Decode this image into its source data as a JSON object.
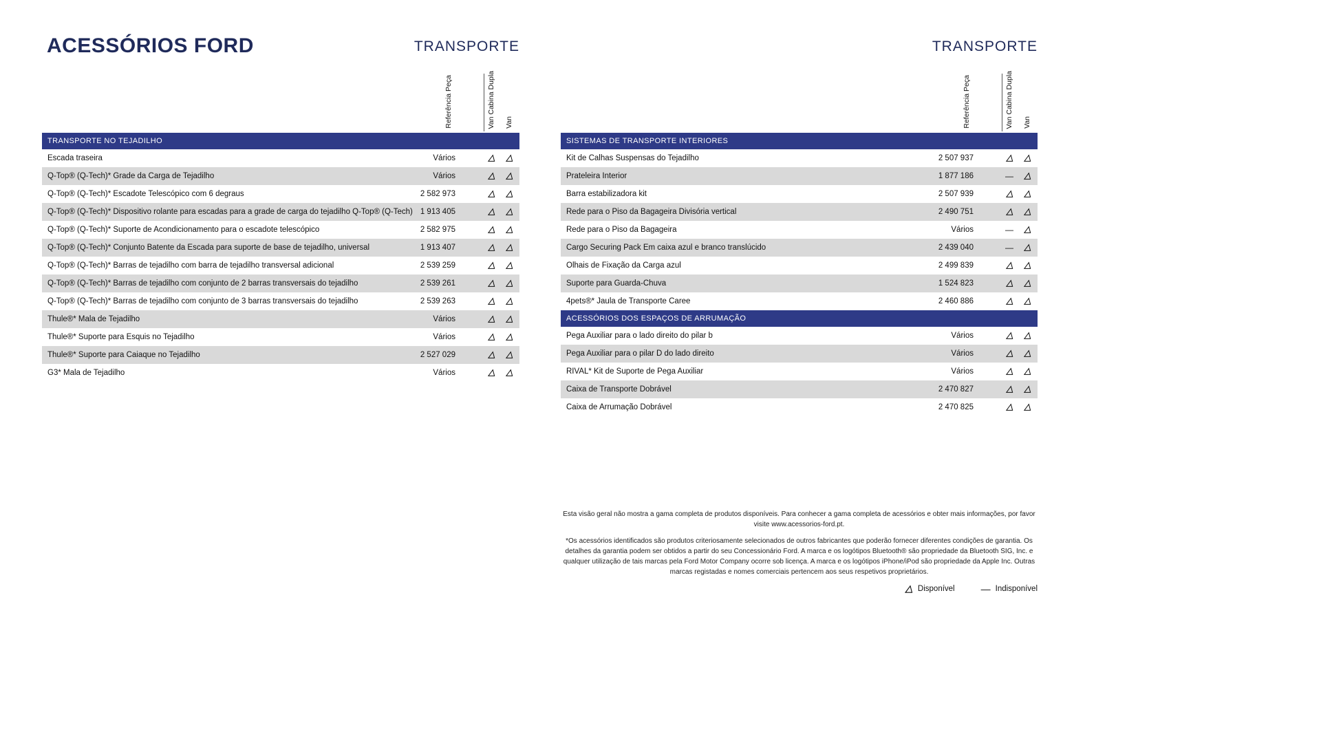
{
  "page": {
    "title": "ACESSÓRIOS FORD"
  },
  "columns": {
    "ref": "Referência Peça",
    "van_cabina_dupla": "Van Cabina Dupla",
    "van": "Van"
  },
  "symbols": {
    "dash": "—"
  },
  "legend": {
    "available": "Disponível",
    "unavailable": "Indisponível"
  },
  "colors": {
    "header_bar": "#2e3a87",
    "row_alt": "#d9d9d9",
    "title": "#1f2a5a"
  },
  "footnotes": [
    "Esta visão geral não mostra a gama completa de produtos disponíveis. Para conhecer a gama completa de acessórios e obter mais informações, por favor visite www.acessorios-ford.pt.",
    "*Os acessórios identificados são produtos criteriosamente selecionados de outros fabricantes que poderão fornecer diferentes condições de garantia. Os detalhes da garantia podem ser obtidos a partir do seu Concessionário Ford. A marca e os logótipos Bluetooth® são propriedade da Bluetooth SIG, Inc. e qualquer utilização de tais marcas pela Ford Motor Company ocorre sob licença. A marca e os logótipos iPhone/iPod são propriedade da Apple Inc. Outras marcas registadas e nomes comerciais pertencem aos seus respetivos proprietários."
  ],
  "left_table": {
    "header": "TRANSPORTE",
    "sections": [
      {
        "title": "TRANSPORTE NO TEJADILHO",
        "rows": [
          {
            "name": "Escada traseira",
            "ref": "Vários",
            "van_cabina_dupla": true,
            "van": true
          },
          {
            "name": "Q-Top® (Q-Tech)* Grade da Carga de Tejadilho",
            "ref": "Vários",
            "van_cabina_dupla": true,
            "van": true
          },
          {
            "name": "Q-Top® (Q-Tech)* Escadote Telescópico com 6 degraus",
            "ref": "2 582 973",
            "van_cabina_dupla": true,
            "van": true
          },
          {
            "name": "Q-Top® (Q-Tech)* Dispositivo rolante para escadas para a grade de carga do tejadilho Q-Top® (Q-Tech)",
            "ref": "1 913 405",
            "van_cabina_dupla": true,
            "van": true
          },
          {
            "name": "Q-Top® (Q-Tech)* Suporte de Acondicionamento para o escadote telescópico",
            "ref": "2 582 975",
            "van_cabina_dupla": true,
            "van": true
          },
          {
            "name": "Q-Top® (Q-Tech)* Conjunto Batente da Escada para suporte de base de tejadilho, universal",
            "ref": "1 913 407",
            "van_cabina_dupla": true,
            "van": true
          },
          {
            "name": "Q-Top® (Q-Tech)* Barras de tejadilho com barra de tejadilho transversal adicional",
            "ref": "2 539 259",
            "van_cabina_dupla": true,
            "van": true
          },
          {
            "name": "Q-Top® (Q-Tech)* Barras de tejadilho com conjunto de 2 barras transversais do tejadilho",
            "ref": "2 539 261",
            "van_cabina_dupla": true,
            "van": true
          },
          {
            "name": "Q-Top® (Q-Tech)* Barras de tejadilho com conjunto de 3 barras transversais do tejadilho",
            "ref": "2 539 263",
            "van_cabina_dupla": true,
            "van": true
          },
          {
            "name": "Thule®* Mala de Tejadilho",
            "ref": "Vários",
            "van_cabina_dupla": true,
            "van": true
          },
          {
            "name": "Thule®* Suporte para Esquis no Tejadilho",
            "ref": "Vários",
            "van_cabina_dupla": true,
            "van": true
          },
          {
            "name": "Thule®* Suporte para Caiaque no Tejadilho",
            "ref": "2 527 029",
            "van_cabina_dupla": true,
            "van": true
          },
          {
            "name": "G3* Mala de Tejadilho",
            "ref": "Vários",
            "van_cabina_dupla": true,
            "van": true
          }
        ]
      }
    ]
  },
  "right_table": {
    "header": "TRANSPORTE",
    "sections": [
      {
        "title": "SISTEMAS DE TRANSPORTE INTERIORES",
        "rows": [
          {
            "name": "Kit de Calhas Suspensas do Tejadilho",
            "ref": "2 507 937",
            "van_cabina_dupla": true,
            "van": true
          },
          {
            "name": "Prateleira Interior",
            "ref": "1 877 186",
            "van_cabina_dupla": false,
            "van": true
          },
          {
            "name": "Barra estabilizadora kit",
            "ref": "2 507 939",
            "van_cabina_dupla": true,
            "van": true
          },
          {
            "name": "Rede para o Piso da Bagageira Divisória vertical",
            "ref": "2 490 751",
            "van_cabina_dupla": true,
            "van": true
          },
          {
            "name": "Rede para o Piso da Bagageira",
            "ref": "Vários",
            "van_cabina_dupla": false,
            "van": true
          },
          {
            "name": "Cargo Securing Pack Em caixa azul e branco translúcido",
            "ref": "2 439 040",
            "van_cabina_dupla": false,
            "van": true
          },
          {
            "name": "Olhais de Fixação da Carga azul",
            "ref": "2 499 839",
            "van_cabina_dupla": true,
            "van": true
          },
          {
            "name": "Suporte para Guarda-Chuva",
            "ref": "1 524 823",
            "van_cabina_dupla": true,
            "van": true
          },
          {
            "name": "4pets®* Jaula de Transporte Caree",
            "ref": "2 460 886",
            "van_cabina_dupla": true,
            "van": true
          }
        ]
      },
      {
        "title": "ACESSÓRIOS DOS ESPAÇOS DE ARRUMAÇÃO",
        "rows": [
          {
            "name": "Pega Auxiliar para o lado direito do pilar b",
            "ref": "Vários",
            "van_cabina_dupla": true,
            "van": true
          },
          {
            "name": "Pega Auxiliar para o pilar D do lado direito",
            "ref": "Vários",
            "van_cabina_dupla": true,
            "van": true
          },
          {
            "name": "RIVAL* Kit de Suporte de Pega Auxiliar",
            "ref": "Vários",
            "van_cabina_dupla": true,
            "van": true
          },
          {
            "name": "Caixa de Transporte Dobrável",
            "ref": "2 470 827",
            "van_cabina_dupla": true,
            "van": true
          },
          {
            "name": "Caixa de Arrumação Dobrável",
            "ref": "2 470 825",
            "van_cabina_dupla": true,
            "van": true
          }
        ]
      }
    ]
  }
}
